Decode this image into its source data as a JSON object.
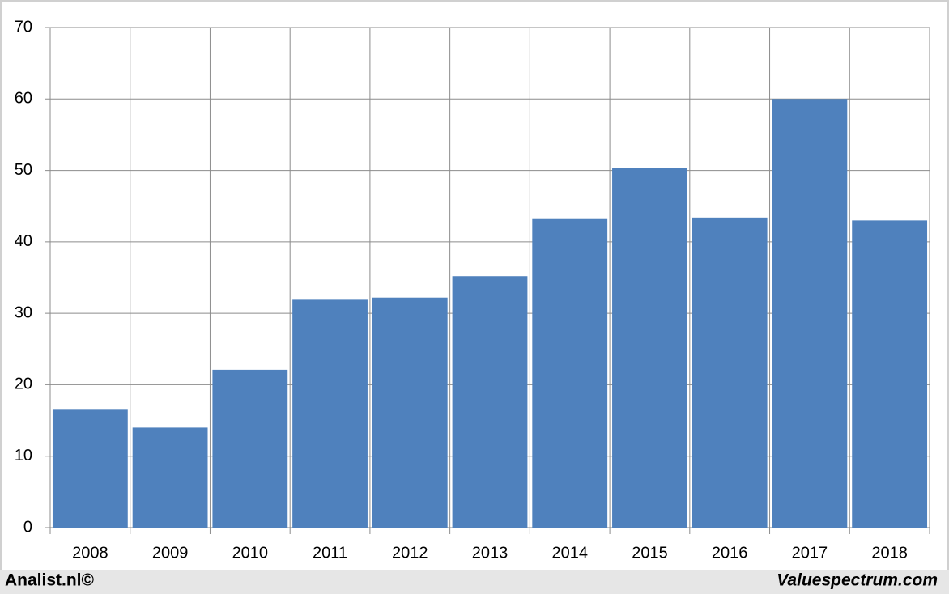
{
  "chart_data": {
    "type": "bar",
    "categories": [
      "2008",
      "2009",
      "2010",
      "2011",
      "2012",
      "2013",
      "2014",
      "2015",
      "2016",
      "2017",
      "2018"
    ],
    "values": [
      16.5,
      14.0,
      22.1,
      31.9,
      32.2,
      35.2,
      43.3,
      50.3,
      43.4,
      60.0,
      43.0
    ],
    "color": "#4f81bd",
    "ylim": [
      0,
      70
    ],
    "yticks": [
      0,
      10,
      20,
      30,
      40,
      50,
      60,
      70
    ],
    "grid": true,
    "footer_left": "Analist.nl©",
    "footer_right": "Valuespectrum.com"
  }
}
